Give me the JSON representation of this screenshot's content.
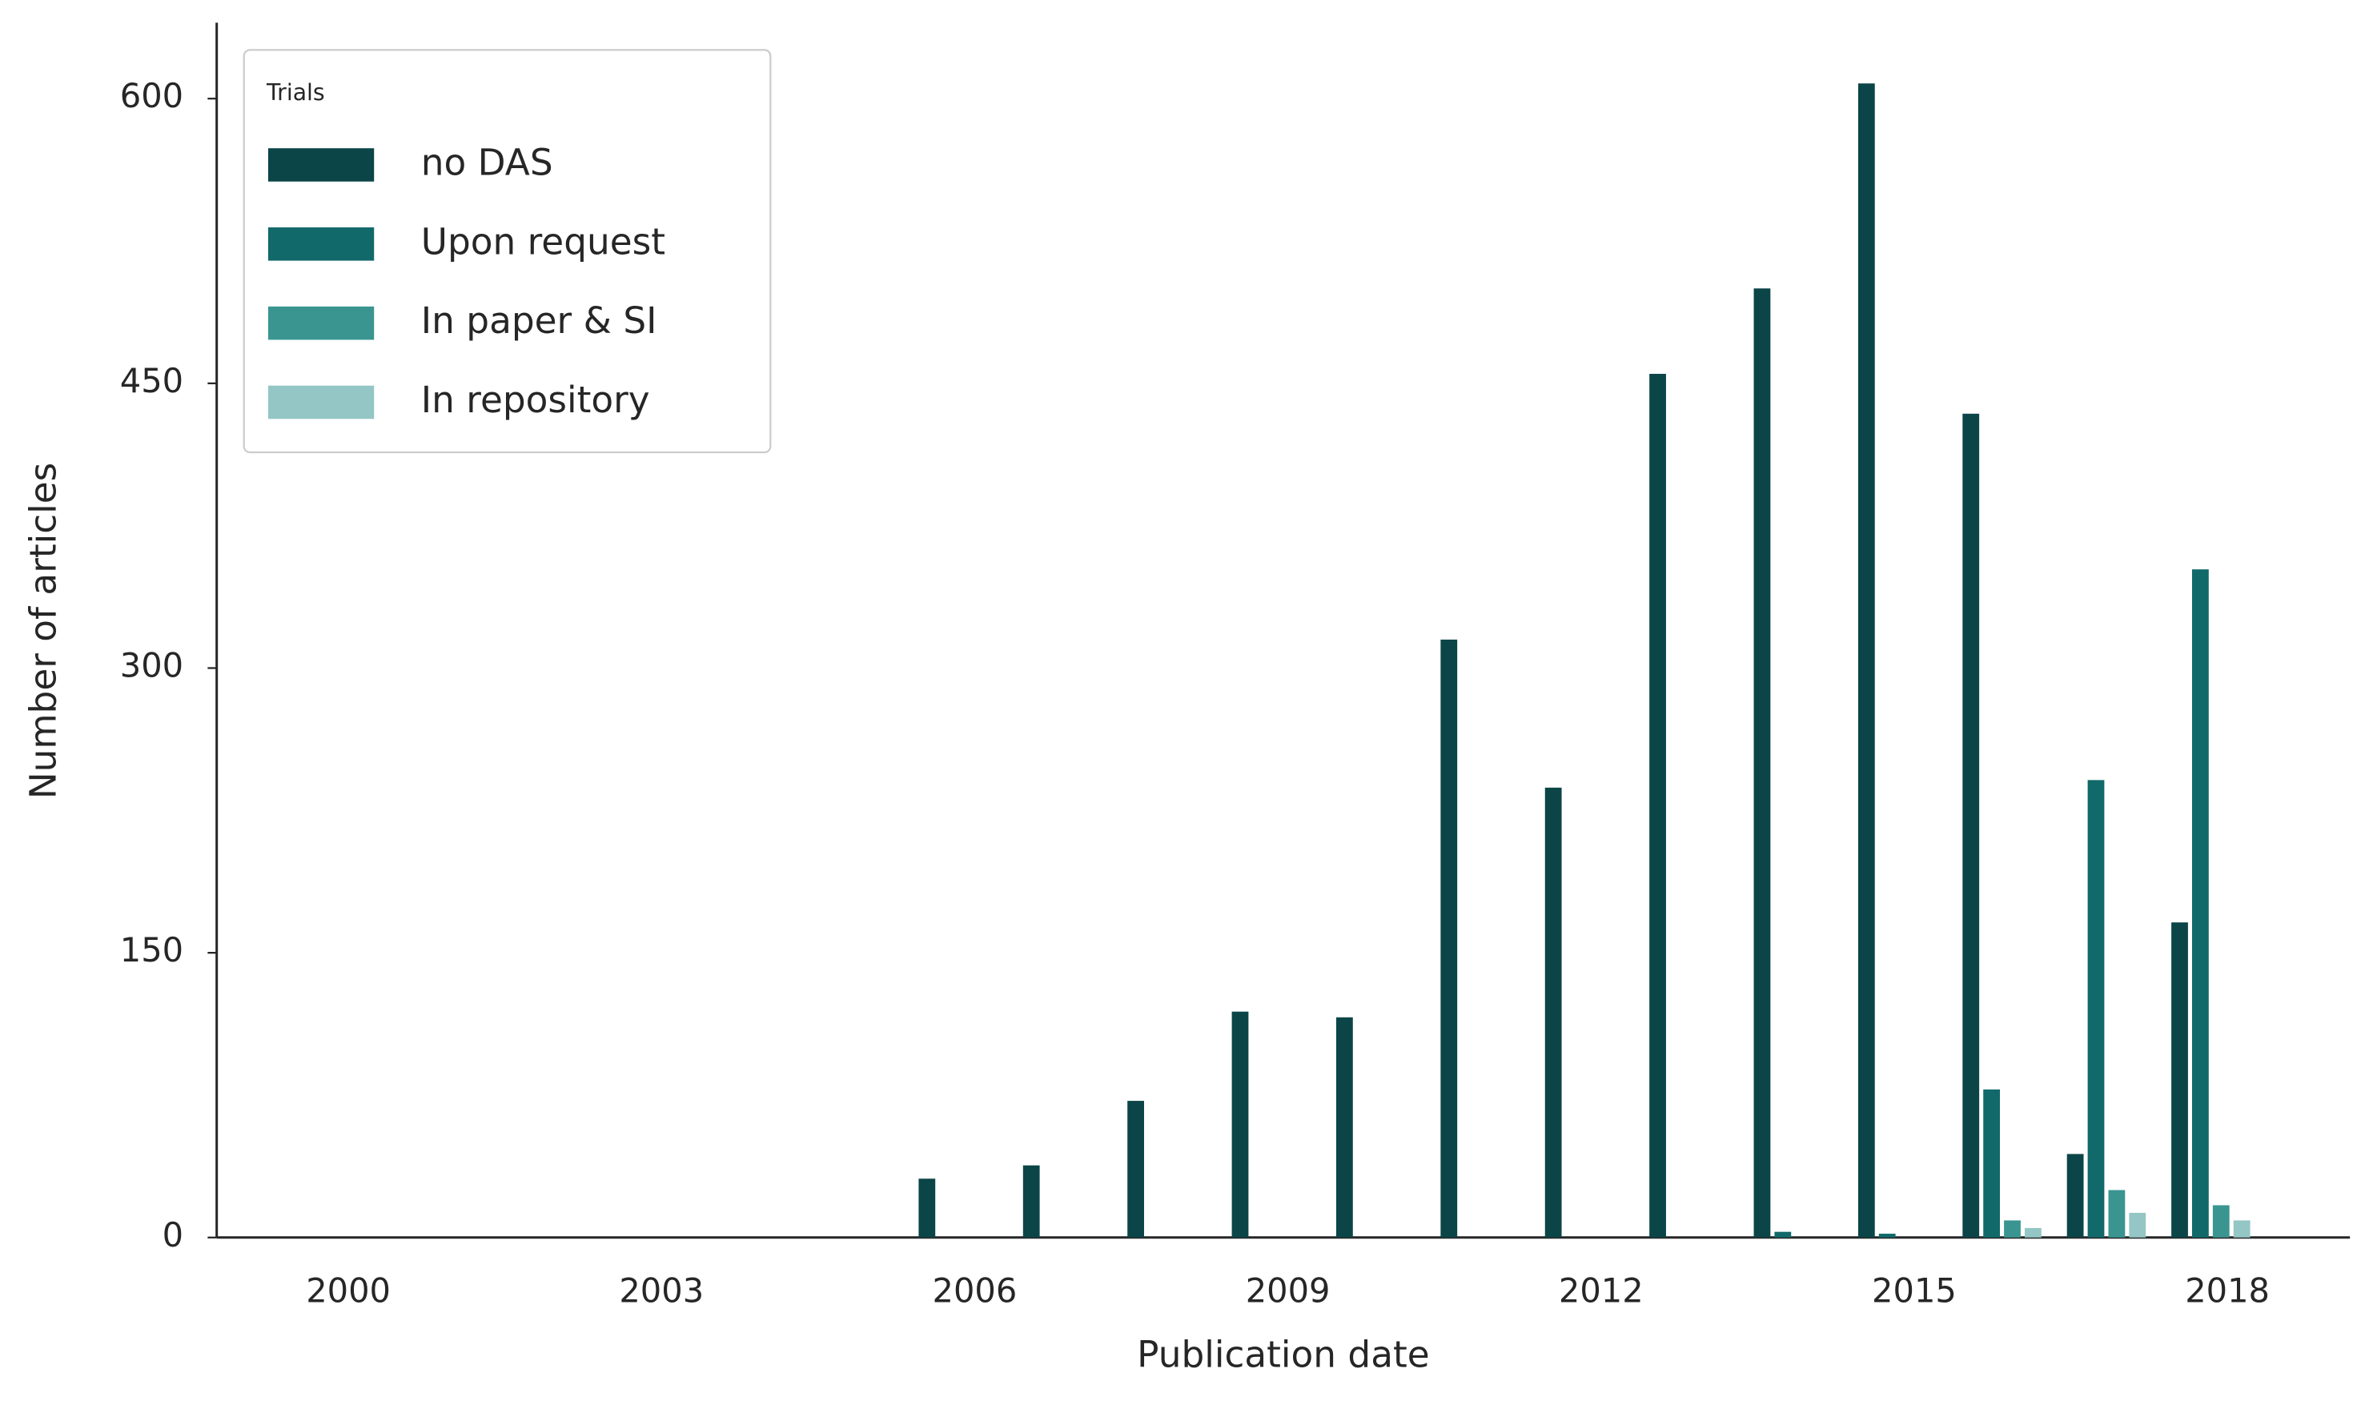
{
  "chart_data": {
    "type": "bar",
    "x_label": "Publication date",
    "y_label": "Number of articles",
    "legend_title": "Trials",
    "legend_position": "upper left",
    "categories": [
      "2000",
      null,
      null,
      "2003",
      null,
      null,
      "2006",
      null,
      null,
      "2009",
      null,
      null,
      "2012",
      null,
      null,
      "2015",
      null,
      null,
      "2018"
    ],
    "series": [
      {
        "name": "no DAS",
        "color": "#0b4547",
        "values": [
          0,
          0,
          0,
          0,
          0,
          0,
          31,
          38,
          72,
          119,
          116,
          315,
          237,
          455,
          500,
          608,
          434,
          44,
          166
        ]
      },
      {
        "name": "Upon request",
        "color": "#11696a",
        "values": [
          0,
          0,
          0,
          0,
          0,
          0,
          0,
          0,
          0,
          0,
          0,
          0,
          0,
          0,
          3,
          2,
          78,
          241,
          352
        ]
      },
      {
        "name": "In paper & SI",
        "color": "#3a9591",
        "values": [
          0,
          0,
          0,
          0,
          0,
          0,
          0,
          0,
          0,
          0,
          0,
          0,
          0,
          0,
          0,
          0,
          9,
          25,
          17
        ]
      },
      {
        "name": "In repository",
        "color": "#93c6c4",
        "values": [
          0,
          0,
          0,
          0,
          0,
          0,
          0,
          0,
          0,
          0,
          0,
          0,
          0,
          0,
          0,
          0,
          5,
          13,
          9
        ]
      }
    ],
    "ylim": [
      0,
      640
    ],
    "yticks": [
      0,
      150,
      300,
      450,
      600
    ],
    "grid": false
  }
}
